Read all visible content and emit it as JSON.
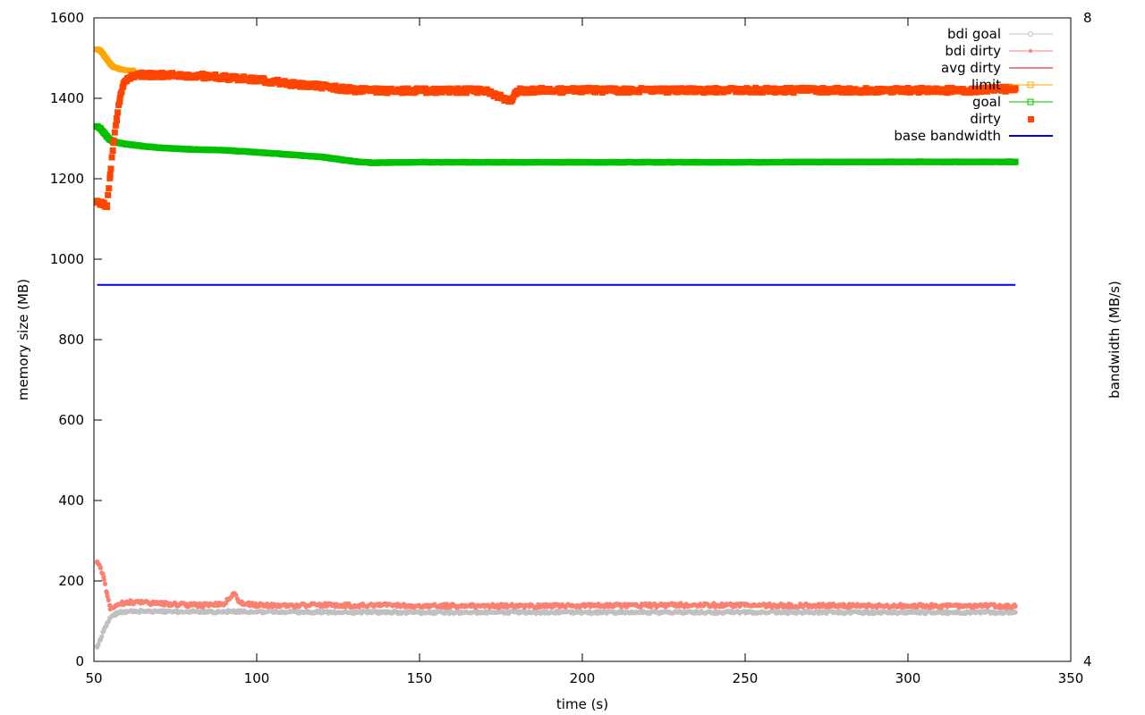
{
  "chart_data": {
    "type": "scatter",
    "title": "",
    "xlabel": "time (s)",
    "ylabel": "memory size (MB)",
    "y2label": "bandwidth (MB/s)",
    "xlim": [
      50,
      350
    ],
    "ylim": [
      0,
      1600
    ],
    "y2lim": [
      4,
      8
    ],
    "xticks": [
      "50",
      "100",
      "150",
      "200",
      "250",
      "300",
      "350"
    ],
    "yticks": [
      "0",
      "200",
      "400",
      "600",
      "800",
      "1000",
      "1200",
      "1400",
      "1600"
    ],
    "y2ticks": [
      "4",
      "8"
    ],
    "grid": false,
    "legend_position": "top-right",
    "colors": {
      "bdi_goal": "#c0c0c0",
      "bdi_dirty": "#fa8072",
      "avg_dirty": "#dd0000",
      "limit": "#ffa500",
      "goal": "#00c000",
      "dirty": "#ff4500",
      "base_bandwidth": "#0000e0"
    },
    "series": [
      {
        "name": "bdi goal",
        "key": "bdi_goal",
        "style": "points",
        "x": [
          51,
          52,
          53,
          54,
          55,
          56,
          57,
          58,
          60,
          62,
          65,
          70,
          75,
          80,
          85,
          90,
          95,
          100,
          110,
          120,
          130,
          140,
          150,
          160,
          170,
          180,
          190,
          200,
          210,
          220,
          230,
          240,
          250,
          260,
          270,
          280,
          290,
          300,
          310,
          320,
          333
        ],
        "y": [
          35,
          55,
          75,
          95,
          108,
          115,
          119,
          122,
          124,
          125,
          125,
          124,
          124,
          124,
          123,
          124,
          124,
          123,
          123,
          123,
          122,
          122,
          122,
          122,
          122,
          122,
          122,
          122,
          122,
          122,
          122,
          122,
          122,
          122,
          122,
          122,
          122,
          122,
          122,
          122,
          122
        ]
      },
      {
        "name": "bdi dirty",
        "key": "bdi_dirty",
        "style": "points",
        "x": [
          51,
          52,
          53,
          54,
          55,
          56,
          58,
          60,
          62,
          65,
          70,
          75,
          80,
          85,
          90,
          93,
          95,
          100,
          110,
          120,
          130,
          140,
          150,
          160,
          170,
          180,
          190,
          200,
          210,
          220,
          230,
          240,
          250,
          260,
          270,
          280,
          290,
          300,
          310,
          320,
          333
        ],
        "y": [
          248,
          232,
          210,
          170,
          130,
          133,
          142,
          148,
          147,
          146,
          144,
          142,
          140,
          140,
          143,
          168,
          145,
          140,
          139,
          141,
          139,
          139,
          138,
          138,
          138,
          138,
          138,
          139,
          139,
          139,
          140,
          140,
          139,
          139,
          139,
          139,
          139,
          138,
          138,
          138,
          137
        ]
      },
      {
        "name": "avg dirty",
        "key": "avg_dirty",
        "style": "line",
        "x": [],
        "y": []
      },
      {
        "name": "limit",
        "key": "limit",
        "style": "points",
        "x": [
          51,
          52,
          53,
          54,
          55,
          56,
          58,
          60,
          62
        ],
        "y": [
          1522,
          1518,
          1508,
          1497,
          1486,
          1478,
          1472,
          1470,
          1469
        ]
      },
      {
        "name": "goal",
        "key": "goal",
        "style": "points",
        "x": [
          51,
          52,
          53,
          54,
          55,
          56,
          58,
          60,
          65,
          70,
          80,
          90,
          100,
          110,
          120,
          130,
          135,
          140,
          150,
          170,
          200,
          250,
          300,
          333
        ],
        "y": [
          1330,
          1325,
          1315,
          1305,
          1297,
          1292,
          1289,
          1286,
          1281,
          1277,
          1273,
          1271,
          1266,
          1260,
          1254,
          1243,
          1240,
          1240,
          1241,
          1241,
          1241,
          1241,
          1242,
          1242
        ]
      },
      {
        "name": "dirty",
        "key": "dirty",
        "style": "points",
        "x": [
          51,
          52,
          53,
          54,
          55,
          56,
          57,
          58,
          59,
          60,
          61,
          62,
          65,
          70,
          75,
          80,
          85,
          90,
          95,
          100,
          105,
          110,
          115,
          120,
          125,
          130,
          135,
          140,
          150,
          160,
          170,
          178,
          180,
          190,
          200,
          210,
          220,
          230,
          240,
          250,
          260,
          270,
          280,
          290,
          300,
          310,
          320,
          333
        ],
        "y": [
          1145,
          1138,
          1135,
          1130,
          1210,
          1290,
          1350,
          1400,
          1430,
          1445,
          1452,
          1456,
          1458,
          1458,
          1457,
          1456,
          1455,
          1452,
          1450,
          1446,
          1442,
          1437,
          1433,
          1430,
          1425,
          1421,
          1419,
          1419,
          1419,
          1419,
          1419,
          1393,
          1419,
          1420,
          1420,
          1420,
          1420,
          1420,
          1420,
          1420,
          1420,
          1420,
          1420,
          1420,
          1420,
          1420,
          1420,
          1424
        ]
      },
      {
        "name": "base bandwidth",
        "key": "base_bandwidth",
        "style": "line",
        "x": [
          51,
          100,
          150,
          200,
          250,
          300,
          333
        ],
        "y": [
          936,
          936,
          936,
          936,
          936,
          936,
          936
        ]
      }
    ]
  }
}
